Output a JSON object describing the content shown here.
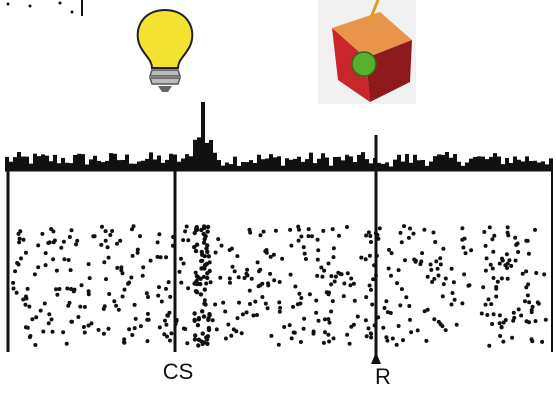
{
  "labels": {
    "cs": "CS",
    "r": "R"
  }
}
